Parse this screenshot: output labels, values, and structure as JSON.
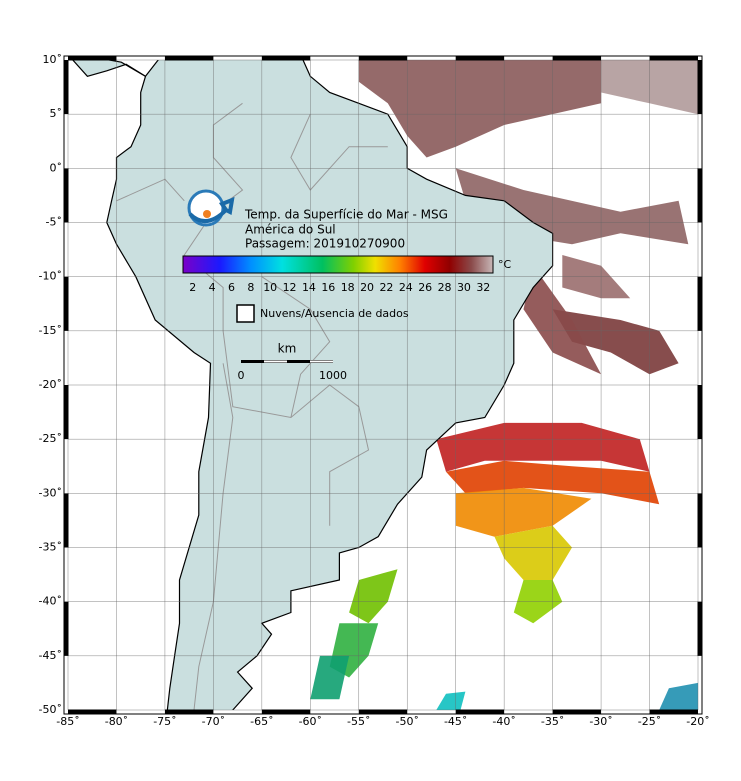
{
  "map": {
    "title": "Temp. da Superfície do Mar - MSG",
    "region": "América do Sul",
    "pass": "Passagem: 201910270900",
    "colorbar": {
      "ticks": [
        "2",
        "4",
        "6",
        "8",
        "10",
        "12",
        "14",
        "16",
        "18",
        "20",
        "22",
        "24",
        "26",
        "28",
        "30",
        "32"
      ],
      "unit": "°C"
    },
    "no_data_legend": "Nuvens/Ausencia de dados",
    "scale": {
      "unit": "km",
      "start": "0",
      "end": "1000"
    },
    "lat_labels": [
      "10˚",
      "5˚",
      "0˚",
      "-5˚",
      "-10˚",
      "-15˚",
      "-20˚",
      "-25˚",
      "-30˚",
      "-35˚",
      "-40˚",
      "-45˚",
      "-50˚"
    ],
    "lon_labels": [
      "-85˚",
      "-80˚",
      "-75˚",
      "-70˚",
      "-65˚",
      "-60˚",
      "-55˚",
      "-50˚",
      "-45˚",
      "-40˚",
      "-35˚",
      "-30˚",
      "-25˚",
      "-20˚"
    ]
  }
}
